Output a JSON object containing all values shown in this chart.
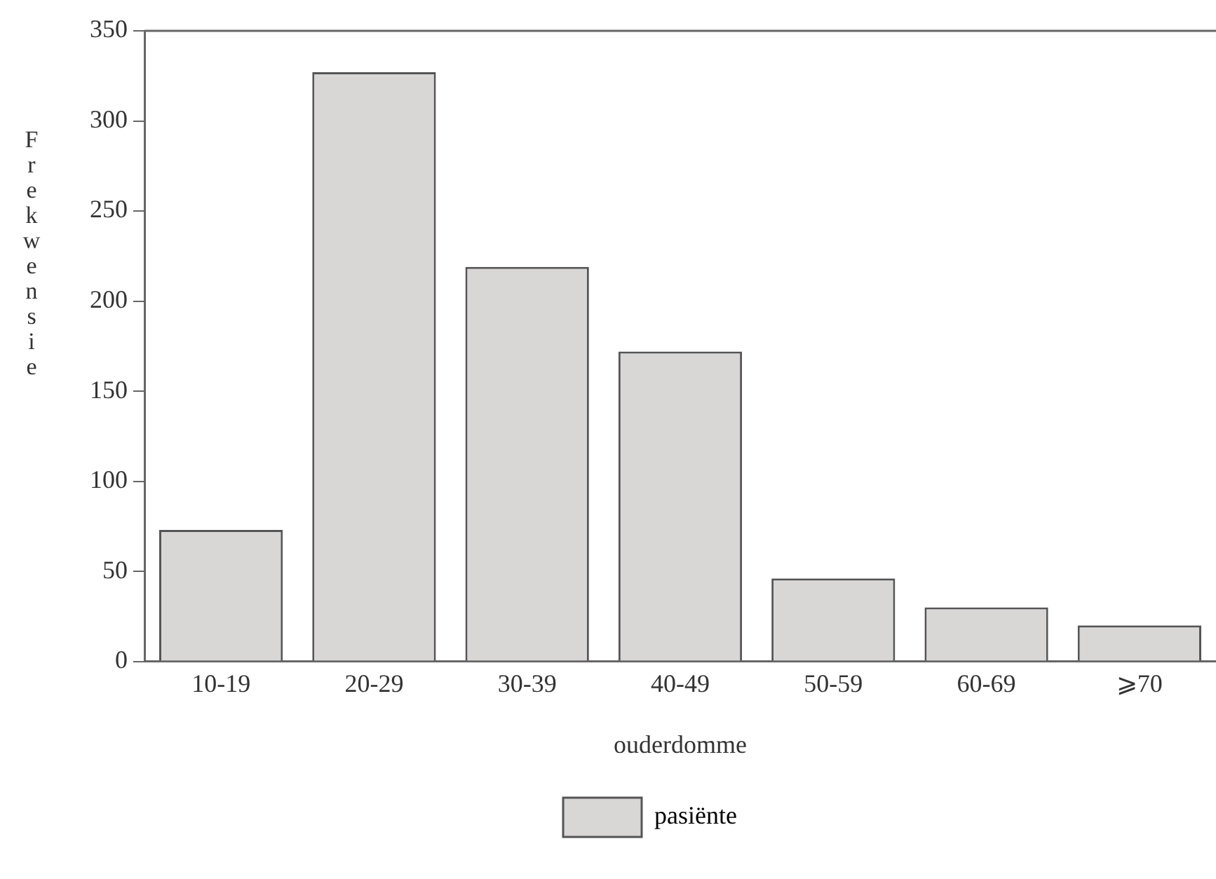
{
  "chart_data": {
    "type": "bar",
    "xlabel": "ouderdomme",
    "ylabel": "Frekwensie",
    "categories": [
      "10-19",
      "20-29",
      "30-39",
      "40-49",
      "50-59",
      "60-69",
      "⩾70"
    ],
    "series": [
      {
        "name": "pasiënte",
        "color": "#d9d6d6",
        "values": [
          73,
          327,
          219,
          172,
          46,
          30,
          20
        ]
      }
    ],
    "ylim": [
      0,
      350
    ],
    "yticks": [
      0,
      50,
      100,
      150,
      200,
      250,
      300,
      350
    ],
    "grid": false,
    "legend": "bottom"
  }
}
